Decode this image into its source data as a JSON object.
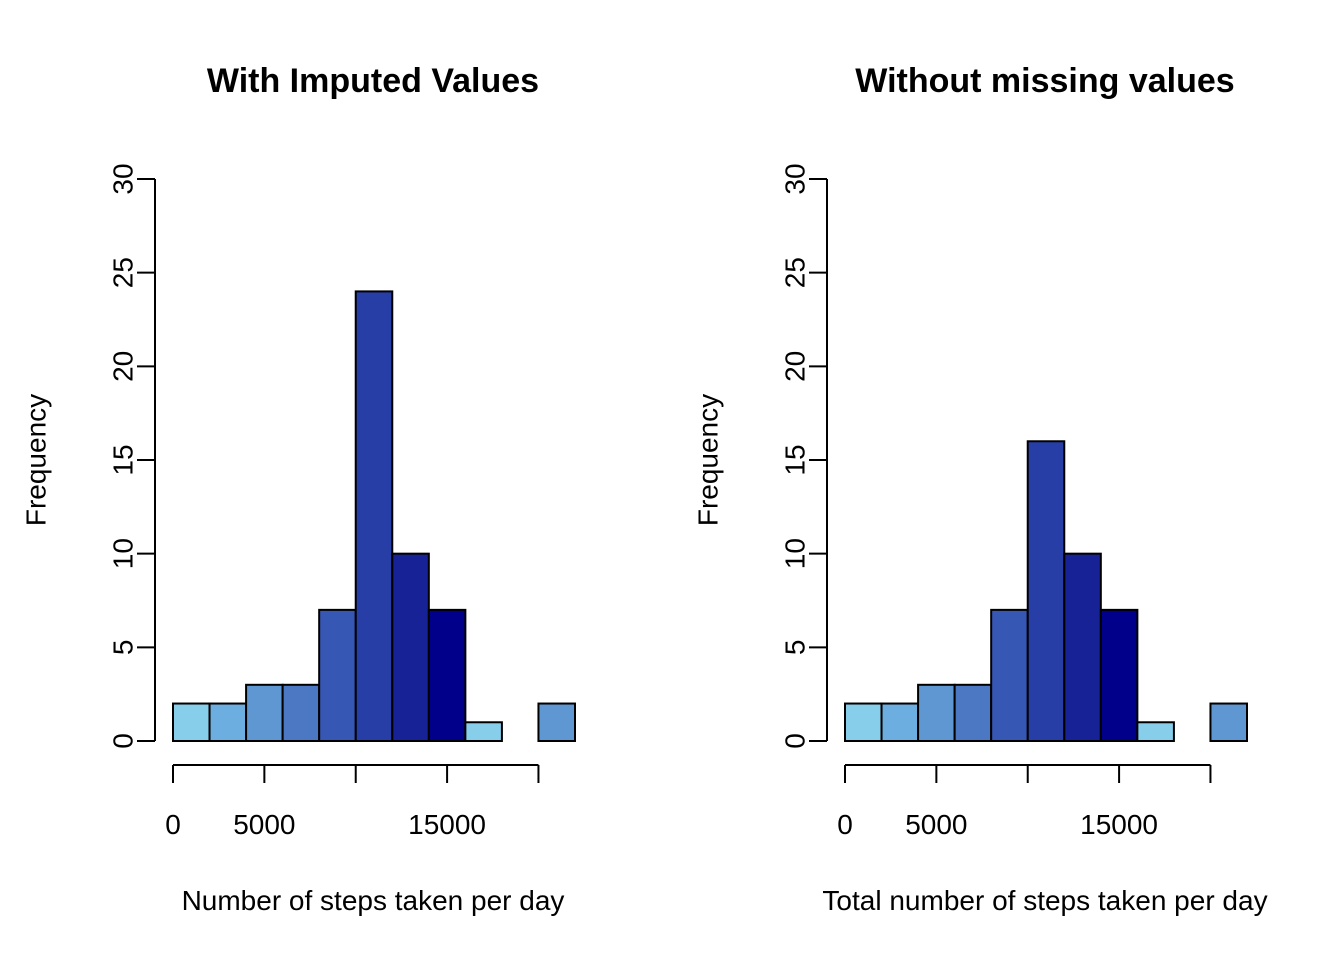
{
  "chart_data": [
    {
      "type": "bar",
      "title": "With Imputed Values",
      "xlabel": "Number of steps taken per day",
      "ylabel": "Frequency",
      "ylim": [
        0,
        30
      ],
      "xlim": [
        0,
        22000
      ],
      "bin_width": 2000,
      "bins": [
        {
          "x0": 0,
          "x1": 2000,
          "value": 2
        },
        {
          "x0": 2000,
          "x1": 4000,
          "value": 2
        },
        {
          "x0": 4000,
          "x1": 6000,
          "value": 3
        },
        {
          "x0": 6000,
          "x1": 8000,
          "value": 3
        },
        {
          "x0": 8000,
          "x1": 10000,
          "value": 7
        },
        {
          "x0": 10000,
          "x1": 12000,
          "value": 24
        },
        {
          "x0": 12000,
          "x1": 14000,
          "value": 10
        },
        {
          "x0": 14000,
          "x1": 16000,
          "value": 7
        },
        {
          "x0": 16000,
          "x1": 18000,
          "value": 1
        },
        {
          "x0": 18000,
          "x1": 20000,
          "value": 0
        },
        {
          "x0": 20000,
          "x1": 22000,
          "value": 2
        }
      ],
      "x_ticks": [
        0,
        5000,
        10000,
        15000,
        20000
      ],
      "x_tick_labels": [
        "0",
        "5000",
        "",
        "15000",
        ""
      ],
      "y_ticks": [
        0,
        5,
        10,
        15,
        20,
        25,
        30
      ],
      "y_tick_labels": [
        "0",
        "5",
        "10",
        "15",
        "20",
        "25",
        "30"
      ],
      "grid": false
    },
    {
      "type": "bar",
      "title": "Without missing values",
      "xlabel": "Total number of steps taken per day",
      "ylabel": "Frequency",
      "ylim": [
        0,
        30
      ],
      "xlim": [
        0,
        22000
      ],
      "bin_width": 2000,
      "bins": [
        {
          "x0": 0,
          "x1": 2000,
          "value": 2
        },
        {
          "x0": 2000,
          "x1": 4000,
          "value": 2
        },
        {
          "x0": 4000,
          "x1": 6000,
          "value": 3
        },
        {
          "x0": 6000,
          "x1": 8000,
          "value": 3
        },
        {
          "x0": 8000,
          "x1": 10000,
          "value": 7
        },
        {
          "x0": 10000,
          "x1": 12000,
          "value": 16
        },
        {
          "x0": 12000,
          "x1": 14000,
          "value": 10
        },
        {
          "x0": 14000,
          "x1": 16000,
          "value": 7
        },
        {
          "x0": 16000,
          "x1": 18000,
          "value": 1
        },
        {
          "x0": 18000,
          "x1": 20000,
          "value": 0
        },
        {
          "x0": 20000,
          "x1": 22000,
          "value": 2
        }
      ],
      "x_ticks": [
        0,
        5000,
        10000,
        15000,
        20000
      ],
      "x_tick_labels": [
        "0",
        "5000",
        "",
        "15000",
        ""
      ],
      "y_ticks": [
        0,
        5,
        10,
        15,
        20,
        25,
        30
      ],
      "y_tick_labels": [
        "0",
        "5",
        "10",
        "15",
        "20",
        "25",
        "30"
      ],
      "grid": false
    }
  ],
  "colors": {
    "bar_fills": [
      "#87CEEB",
      "#6CAEDF",
      "#5F97D3",
      "#4C77C3",
      "#3757B4",
      "#283EA7",
      "#172297",
      "#00008B",
      "#87CEEB",
      "#6CAEDF",
      "#5F97D3"
    ],
    "bar_stroke": "#000000",
    "axis": "#000000",
    "background": "#FFFFFF"
  }
}
